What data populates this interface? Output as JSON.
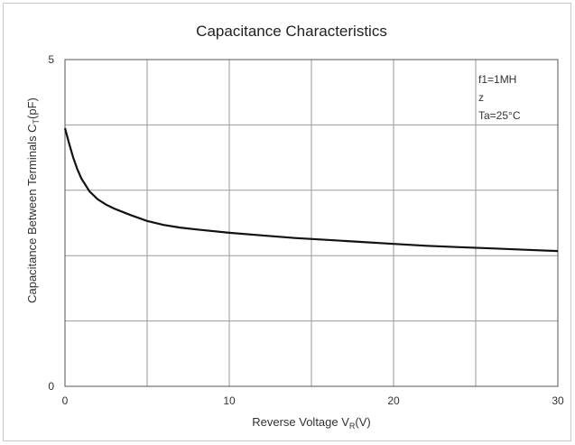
{
  "chart_data": {
    "type": "line",
    "title": "Capacitance Characteristics",
    "xlabel": "Reverse Voltage V",
    "xlabel_sub": "R",
    "xlabel_unit": "(V)",
    "ylabel": "Capacitance Between Terminals C",
    "ylabel_sub": "T",
    "ylabel_unit": "(pF)",
    "xlim": [
      0,
      30
    ],
    "ylim": [
      0,
      5
    ],
    "x_tick_labels": [
      "0",
      "10",
      "20",
      "30"
    ],
    "x_ticks": [
      0,
      10,
      20,
      30
    ],
    "y_tick_labels": [
      "0",
      "5"
    ],
    "y_ticks": [
      0,
      5
    ],
    "x_grid": [
      0,
      5,
      10,
      15,
      20,
      25,
      30
    ],
    "y_grid": [
      0,
      1,
      2,
      3,
      4,
      5
    ],
    "grid": true,
    "annotation_lines": [
      "f1=1MH",
      "z",
      "Ta=25°C"
    ],
    "series": [
      {
        "x": [
          0,
          0.25,
          0.5,
          0.75,
          1,
          1.5,
          2,
          2.5,
          3,
          4,
          5,
          6,
          7,
          8,
          10,
          12,
          14,
          16,
          18,
          20,
          22,
          24,
          26,
          28,
          30
        ],
        "y": [
          3.95,
          3.72,
          3.5,
          3.32,
          3.18,
          2.98,
          2.86,
          2.78,
          2.72,
          2.62,
          2.53,
          2.47,
          2.43,
          2.4,
          2.35,
          2.31,
          2.27,
          2.24,
          2.21,
          2.18,
          2.15,
          2.13,
          2.11,
          2.09,
          2.07
        ]
      }
    ]
  }
}
